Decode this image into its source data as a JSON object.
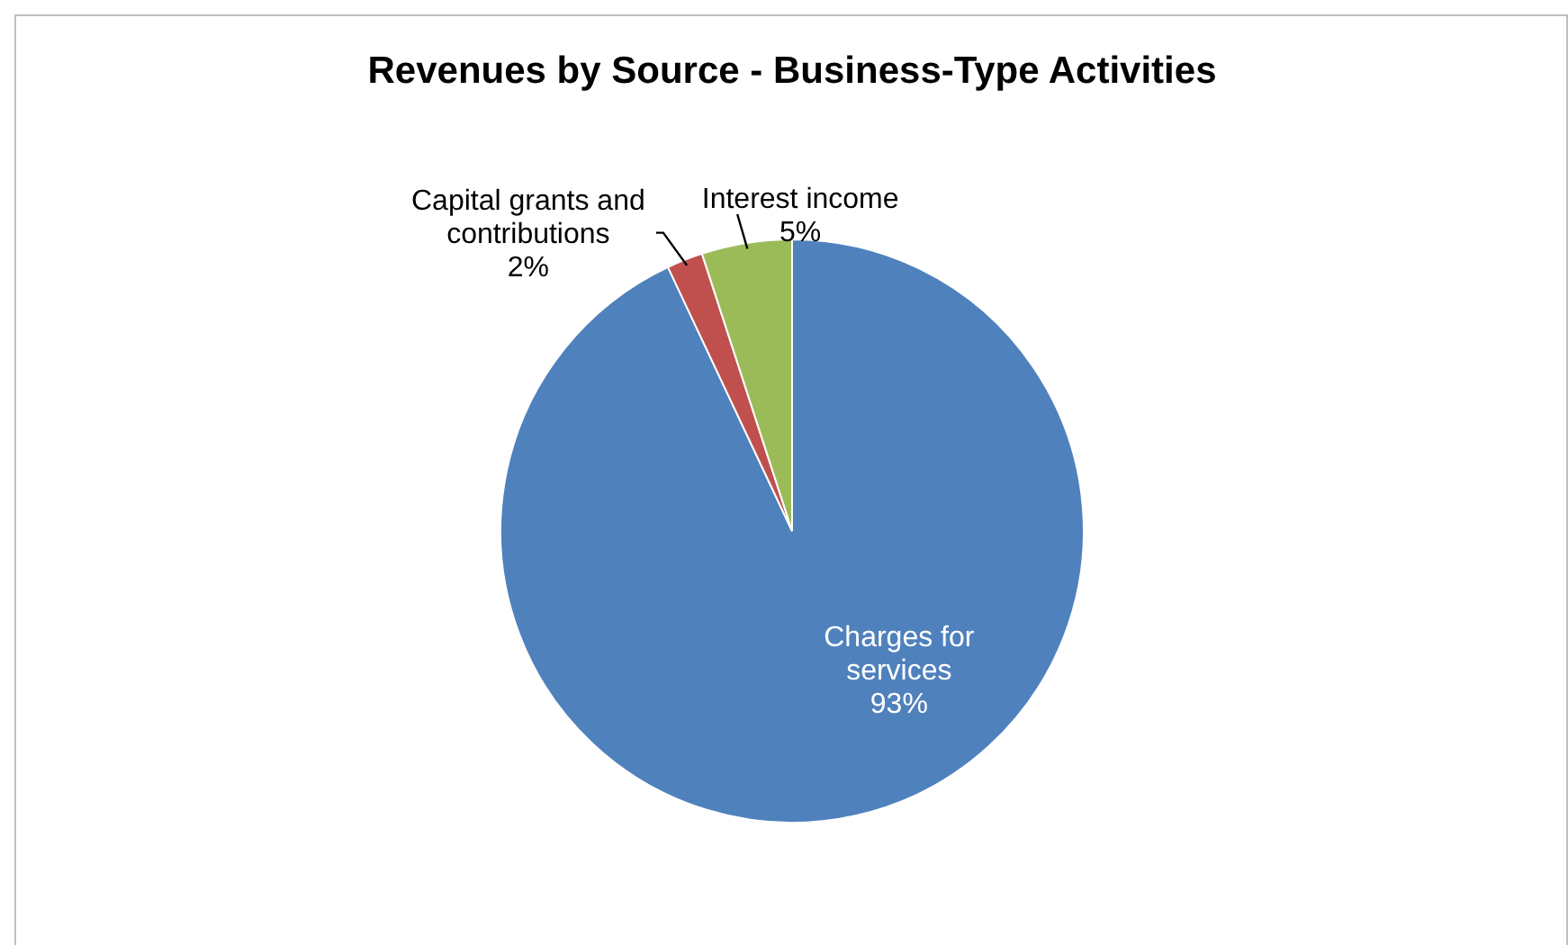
{
  "chart_data": {
    "type": "pie",
    "title": "Revenues by Source - Business-Type Activities",
    "categories": [
      "Charges for services",
      "Capital grants and contributions",
      "Interest income"
    ],
    "values": [
      93,
      2,
      5
    ],
    "colors": [
      "#4f81bd",
      "#c0504d",
      "#9bbb59"
    ],
    "value_labels": [
      "93%",
      "2%",
      "5%"
    ]
  }
}
